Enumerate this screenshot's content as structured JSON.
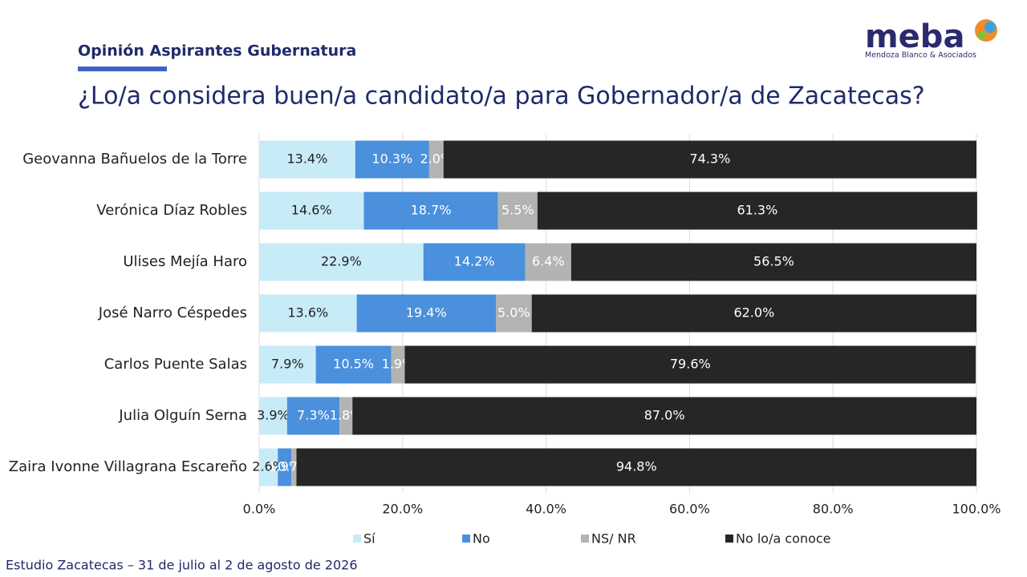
{
  "header": {
    "section": "Opinión Aspirantes Gubernatura",
    "logo": "meba",
    "logo_subtitle": "Mendoza Blanco & Asociados"
  },
  "footer": "Estudio Zacatecas – 31 de julio al 2 de agosto de 2026",
  "chart_data": {
    "type": "stacked-bar-horizontal",
    "title": "¿Lo/a considera buen/a candidato/a para Gobernador/a de Zacatecas?",
    "categories": [
      "Geovanna Bañuelos de la Torre",
      "Verónica Díaz Robles",
      "Ulises Mejía Haro",
      "José Narro Céspedes",
      "Carlos Puente Salas",
      "Julia Olguín Serna",
      "Zaira Ivonne Villagrana Escareño"
    ],
    "series": [
      {
        "name": "Sí",
        "color": "#c8ebf8",
        "values": [
          13.4,
          14.6,
          22.9,
          13.6,
          7.9,
          3.9,
          2.6
        ],
        "value_labels": [
          "13.4%",
          "14.6%",
          "22.9%",
          "13.6%",
          "7.9%",
          "3.9%",
          "2.6%"
        ]
      },
      {
        "name": "No",
        "color": "#4a90dc",
        "values": [
          10.3,
          18.7,
          14.2,
          19.4,
          10.5,
          7.3,
          1.9
        ],
        "value_labels": [
          "10.3%",
          "18.7%",
          "14.2%",
          "19.4%",
          "10.5%",
          "7.3%",
          "1.9%"
        ]
      },
      {
        "name": "NS/ NR",
        "color": "#b3b3b3",
        "values": [
          2.0,
          5.5,
          6.4,
          5.0,
          1.9,
          1.8,
          0.7
        ],
        "value_labels": [
          "2.0%",
          "5.5%",
          "6.4%",
          "5.0%",
          "1.9%",
          "1.8%",
          "0.7%"
        ]
      },
      {
        "name": "No lo/a conoce",
        "color": "#262626",
        "values": [
          74.3,
          61.3,
          56.5,
          62.0,
          79.6,
          87.0,
          94.8
        ],
        "value_labels": [
          "74.3%",
          "61.3%",
          "56.5%",
          "62.0%",
          "79.6%",
          "87.0%",
          "94.8%"
        ]
      }
    ],
    "xlim": [
      0,
      100
    ],
    "xticks": [
      {
        "value": 0,
        "label": "0.0%"
      },
      {
        "value": 20,
        "label": "20.0%"
      },
      {
        "value": 40,
        "label": "40.0%"
      },
      {
        "value": 60,
        "label": "60.0%"
      },
      {
        "value": 80,
        "label": "80.0%"
      },
      {
        "value": 100,
        "label": "100.0%"
      }
    ],
    "grid": true
  }
}
